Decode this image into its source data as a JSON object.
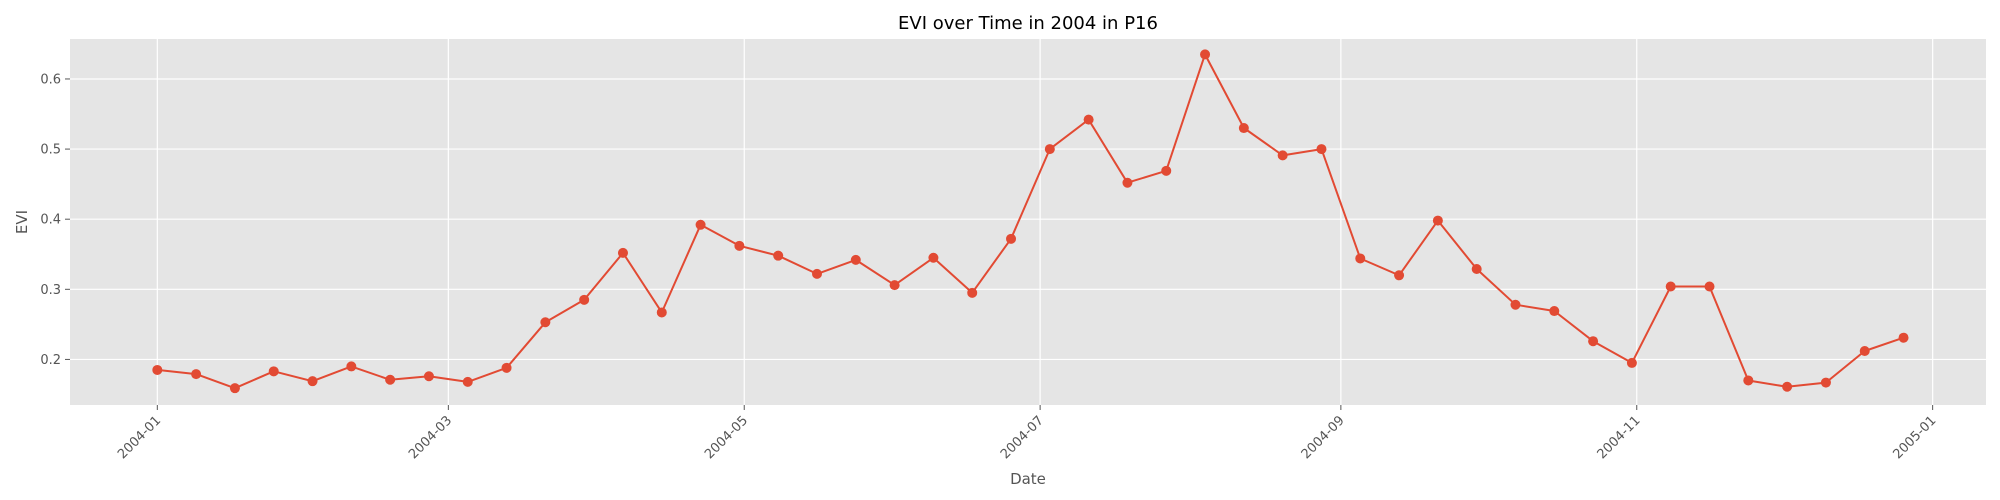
{
  "chart_data": {
    "type": "line",
    "title": "EVI over Time in 2004 in P16",
    "xlabel": "Date",
    "ylabel": "EVI",
    "x_ticks": [
      "2004-01-01",
      "2004-03-01",
      "2004-05-01",
      "2004-07-01",
      "2004-09-01",
      "2004-11-01",
      "2005-01-01"
    ],
    "x_tick_labels": [
      "2004-01",
      "2004-03",
      "2004-05",
      "2004-07",
      "2004-09",
      "2004-11",
      "2005-01"
    ],
    "y_ticks": [
      0.2,
      0.3,
      0.4,
      0.5,
      0.6
    ],
    "y_tick_labels": [
      "0.2",
      "0.3",
      "0.4",
      "0.5",
      "0.6"
    ],
    "xlim": [
      "2003-12-14",
      "2005-01-12"
    ],
    "ylim": [
      0.135,
      0.657
    ],
    "grid": true,
    "colors": {
      "line": "#E24A33",
      "plot_bg": "#E5E5E5",
      "grid": "#FFFFFF"
    },
    "series": [
      {
        "x": [
          "2004-01-01",
          "2004-01-09",
          "2004-01-17",
          "2004-01-25",
          "2004-02-02",
          "2004-02-10",
          "2004-02-18",
          "2004-02-26",
          "2004-03-05",
          "2004-03-13",
          "2004-03-21",
          "2004-03-29",
          "2004-04-06",
          "2004-04-14",
          "2004-04-22",
          "2004-04-30",
          "2004-05-08",
          "2004-05-16",
          "2004-05-24",
          "2004-06-01",
          "2004-06-09",
          "2004-06-17",
          "2004-06-25",
          "2004-07-03",
          "2004-07-11",
          "2004-07-19",
          "2004-07-27",
          "2004-08-04",
          "2004-08-12",
          "2004-08-20",
          "2004-08-28",
          "2004-09-05",
          "2004-09-13",
          "2004-09-21",
          "2004-09-29",
          "2004-10-07",
          "2004-10-15",
          "2004-10-23",
          "2004-10-31",
          "2004-11-08",
          "2004-11-16",
          "2004-11-24",
          "2004-12-02",
          "2004-12-10",
          "2004-12-18",
          "2004-12-26"
        ],
        "y": [
          0.185,
          0.179,
          0.159,
          0.183,
          0.169,
          0.19,
          0.171,
          0.176,
          0.168,
          0.188,
          0.253,
          0.285,
          0.352,
          0.267,
          0.392,
          0.362,
          0.348,
          0.322,
          0.342,
          0.306,
          0.345,
          0.295,
          0.372,
          0.5,
          0.542,
          0.452,
          0.469,
          0.635,
          0.53,
          0.491,
          0.5,
          0.344,
          0.32,
          0.398,
          0.329,
          0.278,
          0.269,
          0.226,
          0.195,
          0.304,
          0.304,
          0.17,
          0.161,
          0.167,
          0.212,
          0.231
        ]
      }
    ]
  }
}
